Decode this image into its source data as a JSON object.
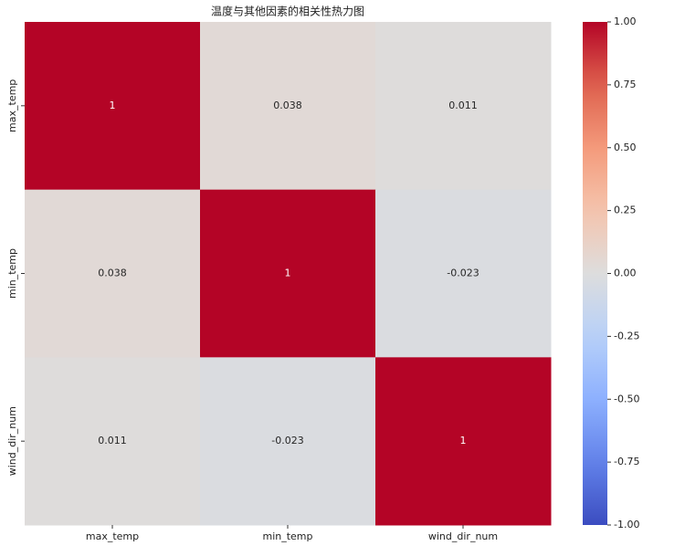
{
  "chart_data": {
    "type": "heatmap",
    "title": "温度与其他因素的相关性热力图",
    "x_categories": [
      "max_temp",
      "min_temp",
      "wind_dir_num"
    ],
    "y_categories": [
      "max_temp",
      "min_temp",
      "wind_dir_num"
    ],
    "values": [
      [
        1,
        0.038,
        0.011
      ],
      [
        0.038,
        1,
        -0.023
      ],
      [
        0.011,
        -0.023,
        1
      ]
    ],
    "colormap": "coolwarm",
    "clim": [
      -1,
      1
    ],
    "colorbar_ticks": [
      {
        "value": 1,
        "label": "1.00"
      },
      {
        "value": 0.75,
        "label": "0.75"
      },
      {
        "value": 0.5,
        "label": "0.50"
      },
      {
        "value": 0.25,
        "label": "0.25"
      },
      {
        "value": 0,
        "label": "0.00"
      },
      {
        "value": -0.25,
        "label": "-0.25"
      },
      {
        "value": -0.5,
        "label": "-0.50"
      },
      {
        "value": -0.75,
        "label": "-0.75"
      },
      {
        "value": -1,
        "label": "-1.00"
      }
    ]
  }
}
